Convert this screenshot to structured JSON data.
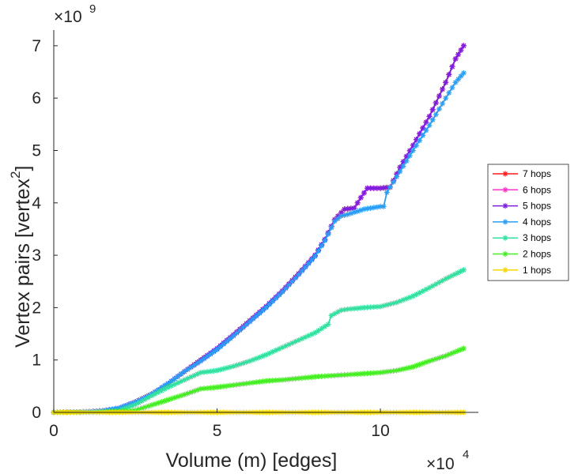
{
  "chart_data": {
    "type": "line",
    "title": "",
    "xlabel": "Volume (m) [edges]",
    "ylabel": "Vertex pairs [vertex",
    "ylabel_sup": "2",
    "ylabel_close": "]",
    "x_exponent": {
      "base": "×10",
      "power": "4"
    },
    "y_exponent": {
      "base": "×10",
      "power": "9"
    },
    "xlim": [
      0,
      13
    ],
    "ylim": [
      0,
      7.3
    ],
    "xticks": [
      0,
      5,
      10
    ],
    "xtick_labels": [
      "0",
      "5",
      "10"
    ],
    "yticks": [
      0,
      1,
      2,
      3,
      4,
      5,
      6,
      7
    ],
    "ytick_labels": [
      "0",
      "1",
      "2",
      "3",
      "4",
      "5",
      "6",
      "7"
    ],
    "x_units": "×10^4 edges",
    "y_units": "×10^9 vertex pairs",
    "legend_position": "outside-right",
    "series": [
      {
        "name": "7 hops",
        "color": "#ff1a1a",
        "points": [
          [
            0,
            0
          ],
          [
            1,
            0.01
          ],
          [
            1.5,
            0.03
          ],
          [
            2,
            0.08
          ],
          [
            2.5,
            0.2
          ],
          [
            3,
            0.35
          ],
          [
            3.5,
            0.55
          ],
          [
            4,
            0.78
          ],
          [
            4.5,
            1.0
          ],
          [
            5,
            1.22
          ],
          [
            5.5,
            1.48
          ],
          [
            6,
            1.75
          ],
          [
            6.5,
            2.02
          ],
          [
            7,
            2.32
          ],
          [
            7.5,
            2.65
          ],
          [
            8,
            3.0
          ],
          [
            8.3,
            3.3
          ],
          [
            8.6,
            3.68
          ],
          [
            8.9,
            3.88
          ],
          [
            9.2,
            3.9
          ],
          [
            9.4,
            4.1
          ],
          [
            9.6,
            4.28
          ],
          [
            10,
            4.28
          ],
          [
            10.3,
            4.3
          ],
          [
            10.6,
            4.68
          ],
          [
            11,
            5.1
          ],
          [
            11.5,
            5.65
          ],
          [
            12,
            6.3
          ],
          [
            12.3,
            6.75
          ],
          [
            12.55,
            7.0
          ]
        ]
      },
      {
        "name": "6 hops",
        "color": "#ff33cc",
        "points": [
          [
            0,
            0
          ],
          [
            1,
            0.01
          ],
          [
            1.5,
            0.03
          ],
          [
            2,
            0.08
          ],
          [
            2.5,
            0.2
          ],
          [
            3,
            0.35
          ],
          [
            3.5,
            0.55
          ],
          [
            4,
            0.78
          ],
          [
            4.5,
            1.0
          ],
          [
            5,
            1.22
          ],
          [
            5.5,
            1.48
          ],
          [
            6,
            1.75
          ],
          [
            6.5,
            2.02
          ],
          [
            7,
            2.32
          ],
          [
            7.5,
            2.65
          ],
          [
            8,
            3.0
          ],
          [
            8.3,
            3.3
          ],
          [
            8.6,
            3.68
          ],
          [
            8.9,
            3.88
          ],
          [
            9.2,
            3.9
          ],
          [
            9.4,
            4.1
          ],
          [
            9.6,
            4.28
          ],
          [
            10,
            4.28
          ],
          [
            10.3,
            4.3
          ],
          [
            10.6,
            4.68
          ],
          [
            11,
            5.1
          ],
          [
            11.5,
            5.65
          ],
          [
            12,
            6.3
          ],
          [
            12.3,
            6.75
          ],
          [
            12.55,
            7.0
          ]
        ]
      },
      {
        "name": "5 hops",
        "color": "#7b1fe0",
        "points": [
          [
            0,
            0
          ],
          [
            1,
            0.01
          ],
          [
            1.5,
            0.03
          ],
          [
            2,
            0.08
          ],
          [
            2.5,
            0.2
          ],
          [
            3,
            0.35
          ],
          [
            3.5,
            0.55
          ],
          [
            4,
            0.78
          ],
          [
            4.5,
            1.0
          ],
          [
            5,
            1.22
          ],
          [
            5.5,
            1.48
          ],
          [
            6,
            1.75
          ],
          [
            6.5,
            2.02
          ],
          [
            7,
            2.32
          ],
          [
            7.5,
            2.65
          ],
          [
            8,
            3.0
          ],
          [
            8.3,
            3.3
          ],
          [
            8.6,
            3.68
          ],
          [
            8.9,
            3.88
          ],
          [
            9.2,
            3.9
          ],
          [
            9.4,
            4.1
          ],
          [
            9.6,
            4.28
          ],
          [
            10,
            4.28
          ],
          [
            10.3,
            4.3
          ],
          [
            10.6,
            4.68
          ],
          [
            11,
            5.1
          ],
          [
            11.5,
            5.65
          ],
          [
            12,
            6.3
          ],
          [
            12.3,
            6.75
          ],
          [
            12.55,
            7.0
          ]
        ]
      },
      {
        "name": "4 hops",
        "color": "#2a9df4",
        "points": [
          [
            0,
            0
          ],
          [
            1,
            0.01
          ],
          [
            1.5,
            0.03
          ],
          [
            2,
            0.08
          ],
          [
            2.5,
            0.2
          ],
          [
            3,
            0.35
          ],
          [
            3.5,
            0.55
          ],
          [
            4,
            0.78
          ],
          [
            4.5,
            0.98
          ],
          [
            5,
            1.2
          ],
          [
            5.5,
            1.46
          ],
          [
            6,
            1.73
          ],
          [
            6.5,
            2.0
          ],
          [
            7,
            2.3
          ],
          [
            7.5,
            2.63
          ],
          [
            8,
            2.98
          ],
          [
            8.3,
            3.28
          ],
          [
            8.6,
            3.65
          ],
          [
            8.8,
            3.75
          ],
          [
            9,
            3.78
          ],
          [
            9.5,
            3.88
          ],
          [
            10,
            3.93
          ],
          [
            10.1,
            3.93
          ],
          [
            10.2,
            4.2
          ],
          [
            10.5,
            4.5
          ],
          [
            11,
            5.0
          ],
          [
            11.5,
            5.48
          ],
          [
            12,
            6.0
          ],
          [
            12.3,
            6.3
          ],
          [
            12.55,
            6.48
          ]
        ]
      },
      {
        "name": "3 hops",
        "color": "#33e0a0",
        "points": [
          [
            0,
            0
          ],
          [
            1,
            0.0
          ],
          [
            2,
            0.03
          ],
          [
            2.5,
            0.15
          ],
          [
            3,
            0.32
          ],
          [
            3.5,
            0.48
          ],
          [
            4,
            0.62
          ],
          [
            4.5,
            0.76
          ],
          [
            5,
            0.8
          ],
          [
            5.5,
            0.88
          ],
          [
            6,
            0.98
          ],
          [
            6.5,
            1.1
          ],
          [
            7,
            1.24
          ],
          [
            7.5,
            1.38
          ],
          [
            8,
            1.52
          ],
          [
            8.4,
            1.68
          ],
          [
            8.5,
            1.85
          ],
          [
            8.8,
            1.95
          ],
          [
            9,
            1.97
          ],
          [
            9.5,
            2.0
          ],
          [
            10,
            2.02
          ],
          [
            10.5,
            2.1
          ],
          [
            11,
            2.22
          ],
          [
            11.5,
            2.38
          ],
          [
            12,
            2.55
          ],
          [
            12.55,
            2.72
          ]
        ]
      },
      {
        "name": "2 hops",
        "color": "#44ee22",
        "points": [
          [
            0,
            0
          ],
          [
            2,
            0.01
          ],
          [
            2.5,
            0.04
          ],
          [
            3,
            0.14
          ],
          [
            3.5,
            0.24
          ],
          [
            4,
            0.34
          ],
          [
            4.5,
            0.45
          ],
          [
            5,
            0.48
          ],
          [
            5.5,
            0.52
          ],
          [
            6,
            0.56
          ],
          [
            6.5,
            0.6
          ],
          [
            7,
            0.62
          ],
          [
            7.5,
            0.65
          ],
          [
            8,
            0.68
          ],
          [
            8.5,
            0.7
          ],
          [
            9,
            0.72
          ],
          [
            9.5,
            0.74
          ],
          [
            10,
            0.76
          ],
          [
            10.5,
            0.8
          ],
          [
            11,
            0.87
          ],
          [
            11.5,
            0.98
          ],
          [
            12,
            1.08
          ],
          [
            12.55,
            1.22
          ]
        ]
      },
      {
        "name": "1 hops",
        "color": "#f5d800",
        "points": [
          [
            0,
            0
          ],
          [
            1,
            0
          ],
          [
            2,
            0
          ],
          [
            3,
            0
          ],
          [
            4,
            0
          ],
          [
            5,
            0
          ],
          [
            6,
            0
          ],
          [
            7,
            0
          ],
          [
            8,
            0
          ],
          [
            9,
            0
          ],
          [
            10,
            0
          ],
          [
            11,
            0
          ],
          [
            12,
            0
          ],
          [
            12.55,
            0
          ]
        ]
      }
    ]
  }
}
